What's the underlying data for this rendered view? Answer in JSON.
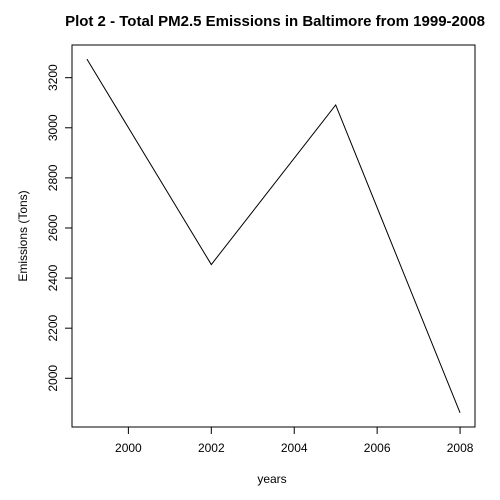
{
  "chart_data": {
    "type": "line",
    "title": "Plot 2 - Total PM2.5 Emissions in Baltimore from 1999-2008",
    "xlabel": "years",
    "ylabel": "Emissions (Tons)",
    "x": [
      1999,
      2002,
      2005,
      2008
    ],
    "values": [
      3274,
      2454,
      3091,
      1862
    ],
    "xlim": [
      1998.64,
      2008.36
    ],
    "ylim": [
      1805.5,
      3330.5
    ],
    "xticks": [
      2000,
      2002,
      2004,
      2006,
      2008
    ],
    "yticks": [
      2000,
      2200,
      2400,
      2600,
      2800,
      3000,
      3200
    ],
    "grid": false,
    "line_color": "#000000"
  }
}
